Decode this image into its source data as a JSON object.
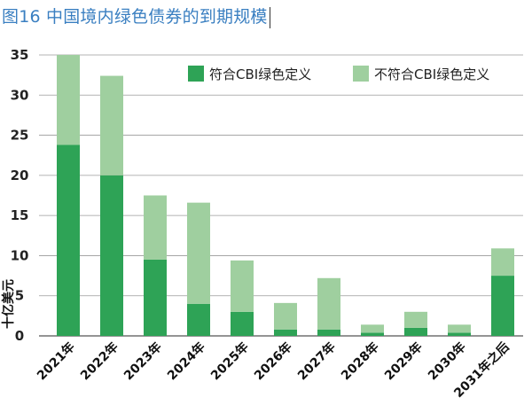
{
  "title": "图16 中国境内绿色债券的到期规模",
  "chart_data": {
    "type": "bar",
    "stacked": true,
    "title": "图16 中国境内绿色债券的到期规模",
    "xlabel": "",
    "ylabel": "十亿美元",
    "ylim": [
      0,
      35
    ],
    "yticks": [
      0,
      5,
      10,
      15,
      20,
      25,
      30,
      35
    ],
    "grid": true,
    "legend_position": "top-right",
    "categories": [
      "2021年",
      "2022年",
      "2023年",
      "2024年",
      "2025年",
      "2026年",
      "2027年",
      "2028年",
      "2029年",
      "2030年",
      "2031年之后"
    ],
    "series": [
      {
        "name": "符合CBI绿色定义",
        "color": "#2ea356",
        "values": [
          23.8,
          20.0,
          9.5,
          4.0,
          3.0,
          0.8,
          0.8,
          0.4,
          1.0,
          0.4,
          7.5
        ]
      },
      {
        "name": "不符合CBI绿色定义",
        "color": "#9fcf9f",
        "values": [
          11.2,
          12.4,
          8.0,
          12.6,
          6.4,
          3.3,
          6.4,
          1.0,
          2.0,
          1.0,
          3.4
        ]
      }
    ]
  }
}
